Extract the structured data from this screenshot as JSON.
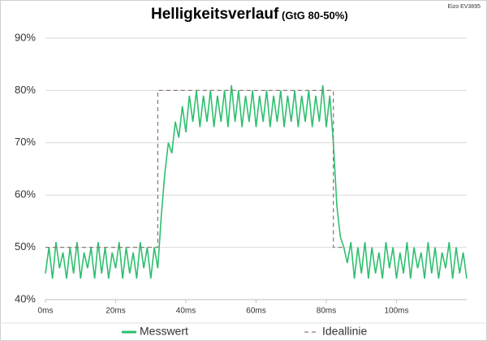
{
  "chart_data": {
    "type": "line",
    "title": "Helligkeitsverlauf",
    "subtitle": "(GtG 80-50%)",
    "annotation": "Eizo EV3895",
    "xlim": [
      0,
      120
    ],
    "xticks": [
      {
        "value": 0,
        "label": "0ms"
      },
      {
        "value": 20,
        "label": "20ms"
      },
      {
        "value": 40,
        "label": "40ms"
      },
      {
        "value": 60,
        "label": "60ms"
      },
      {
        "value": 80,
        "label": "80ms"
      },
      {
        "value": 100,
        "label": "100ms"
      }
    ],
    "ylim": [
      40,
      90
    ],
    "yticks": [
      {
        "value": 40,
        "label": "40%"
      },
      {
        "value": 50,
        "label": "50%"
      },
      {
        "value": 60,
        "label": "60%"
      },
      {
        "value": 70,
        "label": "70%"
      },
      {
        "value": 80,
        "label": "80%"
      },
      {
        "value": 90,
        "label": "90%"
      }
    ],
    "grid": true,
    "legend": "bottom",
    "series": [
      {
        "name": "Messwert",
        "color": "#2ebf6e",
        "style": "solid",
        "x": [
          0,
          1,
          2,
          3,
          4,
          5,
          6,
          7,
          8,
          9,
          10,
          11,
          12,
          13,
          14,
          15,
          16,
          17,
          18,
          19,
          20,
          21,
          22,
          23,
          24,
          25,
          26,
          27,
          28,
          29,
          30,
          31,
          32,
          33,
          34,
          35,
          36,
          37,
          38,
          39,
          40,
          41,
          42,
          43,
          44,
          45,
          46,
          47,
          48,
          49,
          50,
          51,
          52,
          53,
          54,
          55,
          56,
          57,
          58,
          59,
          60,
          61,
          62,
          63,
          64,
          65,
          66,
          67,
          68,
          69,
          70,
          71,
          72,
          73,
          74,
          75,
          76,
          77,
          78,
          79,
          80,
          81,
          82,
          83,
          84,
          85,
          86,
          87,
          88,
          89,
          90,
          91,
          92,
          93,
          94,
          95,
          96,
          97,
          98,
          99,
          100,
          101,
          102,
          103,
          104,
          105,
          106,
          107,
          108,
          109,
          110,
          111,
          112,
          113,
          114,
          115,
          116,
          117,
          118,
          119,
          120
        ],
        "values": [
          45,
          50,
          44,
          51,
          46,
          49,
          44,
          50,
          45,
          51,
          44,
          49,
          46,
          50,
          44,
          51,
          45,
          50,
          44,
          49,
          46,
          51,
          44,
          50,
          45,
          49,
          44,
          51,
          46,
          50,
          44,
          50,
          46,
          56,
          64,
          70,
          68,
          74,
          71,
          77,
          72,
          79,
          74,
          80,
          73,
          79,
          74,
          80,
          73,
          79,
          74,
          80,
          73,
          81,
          74,
          80,
          73,
          79,
          74,
          80,
          73,
          79,
          74,
          80,
          73,
          79,
          74,
          80,
          73,
          79,
          74,
          80,
          73,
          79,
          74,
          80,
          73,
          79,
          74,
          81,
          73,
          79,
          70,
          58,
          52,
          50,
          47,
          51,
          44,
          50,
          45,
          51,
          44,
          50,
          45,
          49,
          44,
          51,
          46,
          50,
          44,
          49,
          45,
          51,
          44,
          50,
          46,
          49,
          44,
          51,
          45,
          50,
          44,
          49,
          46,
          51,
          44,
          50,
          45,
          49,
          44
        ]
      },
      {
        "name": "Ideallinie",
        "color": "#8c7b78",
        "style": "dashed",
        "x": [
          0,
          32,
          32,
          82,
          82,
          85
        ],
        "values": [
          50,
          50,
          80,
          80,
          50,
          50
        ]
      }
    ]
  }
}
